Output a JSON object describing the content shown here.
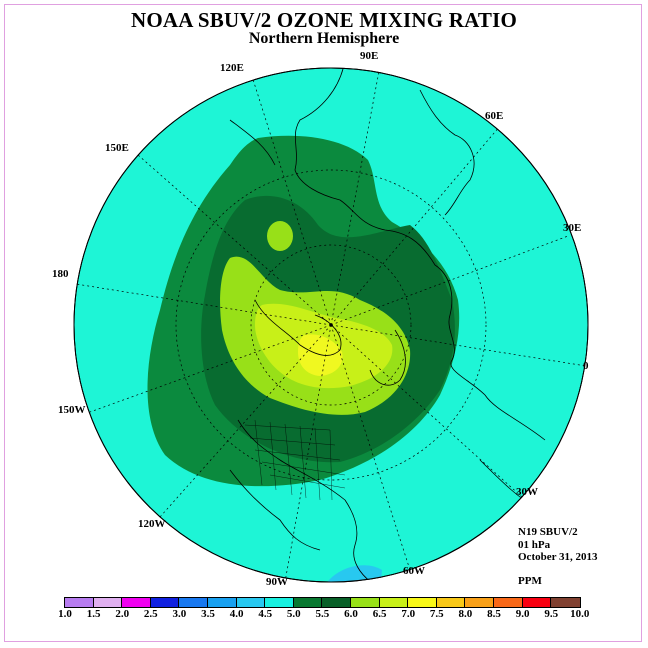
{
  "title": "NOAA SBUV/2 OZONE MIXING RATIO",
  "subtitle": "Northern Hemisphere",
  "longitude_labels": {
    "lon_120e": "120E",
    "lon_90e": "90E",
    "lon_60e": "60E",
    "lon_30e": "30E",
    "lon_0": "0",
    "lon_30w": "30W",
    "lon_60w": "60W",
    "lon_90w": "90W",
    "lon_120w": "120W",
    "lon_150w": "150W",
    "lon_180": "180",
    "lon_150e": "150E"
  },
  "info": {
    "satellite": "N19 SBUV/2",
    "level": "01 hPa",
    "date": "October 31, 2013",
    "units": "PPM"
  },
  "colorbar": {
    "ticks": [
      "1.0",
      "1.5",
      "2.0",
      "2.5",
      "3.0",
      "3.5",
      "4.0",
      "4.5",
      "5.0",
      "5.5",
      "6.0",
      "6.5",
      "7.0",
      "7.5",
      "8.0",
      "8.5",
      "9.0",
      "9.5",
      "10.0"
    ],
    "colors": [
      "#b77cf0",
      "#e0b0f0",
      "#f000f0",
      "#1020e0",
      "#1878f0",
      "#18a0f0",
      "#28c8f0",
      "#18f0e0",
      "#087830",
      "#086028",
      "#98e018",
      "#c8f018",
      "#f8f818",
      "#f8c818",
      "#f8a018",
      "#f86818",
      "#f80010",
      "#804030"
    ]
  },
  "fields": {
    "background_color": "#1ef5d6",
    "contour_5_0_color": "#0b8a3e",
    "contour_5_5_color": "#086c30",
    "contour_6_0_color": "#98e018",
    "contour_6_5_color": "#c8f018",
    "contour_7_0_color": "#f0f820",
    "cold_spot_color": "#28c8f0"
  }
}
